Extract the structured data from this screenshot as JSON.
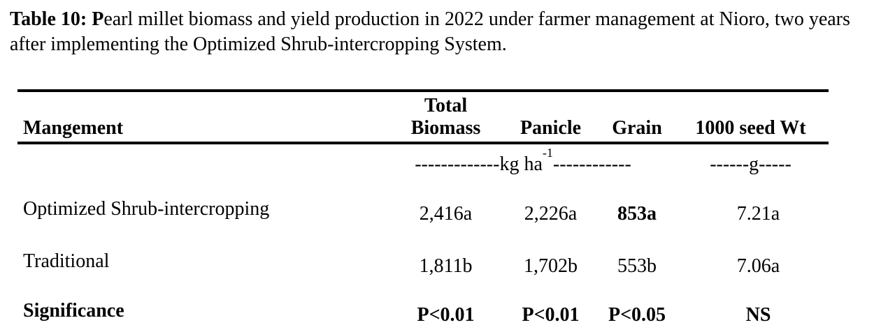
{
  "document": {
    "caption_prefix": "Table 10: P",
    "caption_rest": "earl millet biomass and yield production in 2022 under farmer management at Nioro, two years after implementing the Optimized Shrub-intercropping System."
  },
  "table": {
    "header": {
      "management": "Mangement",
      "total_biomass_line1": "Total",
      "total_biomass_line2": "Biomass",
      "panicle": "Panicle",
      "grain": "Grain",
      "seed_wt": "1000 seed Wt"
    },
    "units": {
      "kg_ha_left_dashes": "-------------",
      "kg_ha_text": "kg ha",
      "kg_ha_sup": "-1",
      "kg_ha_right_dashes": "------------",
      "g_unit": "------g-----"
    },
    "rows": [
      {
        "management": "Optimized Shrub-intercropping",
        "total_biomass": "2,416a",
        "panicle": "2,226a",
        "grain": "853a",
        "seed_wt": "7.21a"
      },
      {
        "management": "Traditional",
        "total_biomass": "1,811b",
        "panicle": "1,702b",
        "grain": "553b",
        "seed_wt": "7.06a"
      },
      {
        "management": "Significance",
        "total_biomass": "P<0.01",
        "panicle": "P<0.01",
        "grain": "P<0.05",
        "seed_wt": "NS"
      }
    ],
    "text_color": "#000000",
    "background_color": "#ffffff"
  }
}
